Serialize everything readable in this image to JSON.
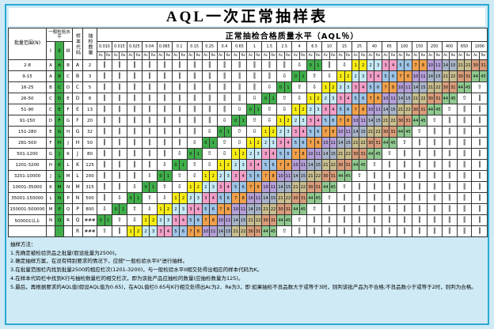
{
  "title": "AQL一次正常抽样表",
  "table": {
    "corner": {
      "lot_range": "批量范围(N)",
      "level_group": "一般检验水平",
      "levels": [
        "I",
        "II",
        "III"
      ],
      "sample_code": "样本代码",
      "sample_qty": "抽检数量"
    },
    "aql_header": "正常抽检合格质量水平（AQL％）",
    "ac": "Ac",
    "re": "Re",
    "aql_values": [
      "0.010",
      "0.015",
      "0.025",
      "0.04",
      "0.065",
      "0.1",
      "0.15",
      "0.25",
      "0.4",
      "0.65",
      "1",
      "1.5",
      "2.5",
      "4",
      "6.5",
      "10",
      "15",
      "25",
      "40",
      "65",
      "100",
      "150",
      "250",
      "400",
      "650",
      "1000"
    ],
    "rows": [
      {
        "range": "2-8",
        "levels": [
          "A",
          "A",
          "B"
        ],
        "code": "A",
        "qty": "2",
        "cells": [
          "D",
          "D",
          "D",
          "D",
          "D",
          "D",
          "D",
          "D",
          "D",
          "D",
          "D",
          "D",
          "D",
          "D",
          "0 1",
          "D",
          "D",
          "1 2",
          "2 3",
          "3 4",
          "5 6",
          "7 8",
          "10 11",
          "14 15",
          "21 22",
          "30 31"
        ]
      },
      {
        "range": "9-15",
        "levels": [
          "A",
          "B",
          "C"
        ],
        "code": "B",
        "qty": "3",
        "cells": [
          "D",
          "D",
          "D",
          "D",
          "D",
          "D",
          "D",
          "D",
          "D",
          "D",
          "D",
          "D",
          "D",
          "0 1",
          "U",
          "D",
          "1 2",
          "2 3",
          "3 4",
          "5 6",
          "7 8",
          "10 11",
          "14 15",
          "21 22",
          "30 31",
          "44 45"
        ]
      },
      {
        "range": "16-25",
        "levels": [
          "B",
          "C",
          "D"
        ],
        "code": "C",
        "qty": "5",
        "cells": [
          "D",
          "D",
          "D",
          "D",
          "D",
          "D",
          "D",
          "D",
          "D",
          "D",
          "D",
          "D",
          "0 1",
          "U",
          "D",
          "1 2",
          "2 3",
          "3 4",
          "5 6",
          "7 8",
          "10 11",
          "14 15",
          "21 22",
          "30 31",
          "44 45",
          "U"
        ]
      },
      {
        "range": "26-50",
        "levels": [
          "C",
          "D",
          "E"
        ],
        "code": "D",
        "qty": "8",
        "cells": [
          "D",
          "D",
          "D",
          "D",
          "D",
          "D",
          "D",
          "D",
          "D",
          "D",
          "D",
          "0 1",
          "U",
          "D",
          "1 2",
          "2 3",
          "3 4",
          "5 6",
          "7 8",
          "10 11",
          "14 15",
          "21 22",
          "30 31",
          "44 45",
          "U",
          "U"
        ]
      },
      {
        "range": "51-90",
        "levels": [
          "C",
          "E",
          "F"
        ],
        "code": "E",
        "qty": "13",
        "cells": [
          "D",
          "D",
          "D",
          "D",
          "D",
          "D",
          "D",
          "D",
          "D",
          "D",
          "0 1",
          "U",
          "D",
          "1 2",
          "2 3",
          "3 4",
          "5 6",
          "7 8",
          "10 11",
          "14 15",
          "21 22",
          "30 31",
          "44 45",
          "U",
          "U",
          "U"
        ]
      },
      {
        "range": "91-150",
        "levels": [
          "D",
          "F",
          "G"
        ],
        "code": "F",
        "qty": "20",
        "cells": [
          "D",
          "D",
          "D",
          "D",
          "D",
          "D",
          "D",
          "D",
          "D",
          "0 1",
          "U",
          "D",
          "1 2",
          "2 3",
          "3 4",
          "5 6",
          "7 8",
          "10 11",
          "14 15",
          "21 22",
          "30 31",
          "44 45",
          "U",
          "U",
          "U",
          "U"
        ]
      },
      {
        "range": "151-280",
        "levels": [
          "E",
          "G",
          "H"
        ],
        "code": "G",
        "qty": "32",
        "cells": [
          "D",
          "D",
          "D",
          "D",
          "D",
          "D",
          "D",
          "D",
          "0 1",
          "U",
          "D",
          "1 2",
          "2 3",
          "3 4",
          "5 6",
          "7 8",
          "10 11",
          "14 15",
          "21 22",
          "30 31",
          "44 45",
          "U",
          "U",
          "U",
          "U",
          "U"
        ]
      },
      {
        "range": "281-500",
        "levels": [
          "F",
          "H",
          "J"
        ],
        "code": "H",
        "qty": "50",
        "cells": [
          "D",
          "D",
          "D",
          "D",
          "D",
          "D",
          "D",
          "0 1",
          "U",
          "D",
          "1 2",
          "2 3",
          "3 4",
          "5 6",
          "7 8",
          "10 11",
          "14 15",
          "21 22",
          "30 31",
          "44 45",
          "U",
          "U",
          "U",
          "U",
          "U",
          "U"
        ]
      },
      {
        "range": "501-1200",
        "levels": [
          "G",
          "J",
          "K"
        ],
        "code": "J",
        "qty": "80",
        "cells": [
          "D",
          "D",
          "D",
          "D",
          "D",
          "D",
          "0 1",
          "U",
          "D",
          "1 2",
          "2 3",
          "3 4",
          "5 6",
          "7 8",
          "10 11",
          "14 15",
          "21 22",
          "30 31",
          "44 45",
          "U",
          "U",
          "U",
          "U",
          "U",
          "U",
          "U"
        ]
      },
      {
        "range": "1201-3200",
        "levels": [
          "H",
          "K",
          "L"
        ],
        "code": "K",
        "qty": "125",
        "cells": [
          "D",
          "D",
          "D",
          "D",
          "D",
          "0 1",
          "U",
          "D",
          "1 2",
          "2 3",
          "3 4",
          "5 6",
          "7 8",
          "10 11",
          "14 15",
          "21 22",
          "30 31",
          "44 45",
          "U",
          "U",
          "U",
          "U",
          "U",
          "U",
          "U",
          "U"
        ]
      },
      {
        "range": "3201-10000",
        "levels": [
          "J",
          "L",
          "M"
        ],
        "code": "L",
        "qty": "200",
        "cells": [
          "D",
          "D",
          "D",
          "D",
          "0 1",
          "U",
          "D",
          "1 2",
          "2 3",
          "3 4",
          "5 6",
          "7 8",
          "10 11",
          "14 15",
          "21 22",
          "30 31",
          "44 45",
          "U",
          "U",
          "U",
          "U",
          "U",
          "U",
          "U",
          "U",
          "U"
        ]
      },
      {
        "range": "10001-35000",
        "levels": [
          "K",
          "M",
          "N"
        ],
        "code": "M",
        "qty": "315",
        "cells": [
          "D",
          "D",
          "D",
          "0 1",
          "U",
          "D",
          "1 2",
          "2 3",
          "3 4",
          "5 6",
          "7 8",
          "10 11",
          "14 15",
          "21 22",
          "30 31",
          "44 45",
          "U",
          "U",
          "U",
          "U",
          "U",
          "U",
          "U",
          "U",
          "U",
          "U"
        ]
      },
      {
        "range": "35001-150000",
        "levels": [
          "L",
          "N",
          "P"
        ],
        "code": "N",
        "qty": "500",
        "cells": [
          "D",
          "D",
          "0 1",
          "U",
          "D",
          "1 2",
          "2 3",
          "3 4",
          "5 6",
          "7 8",
          "10 11",
          "14 15",
          "21 22",
          "30 31",
          "44 45",
          "U",
          "U",
          "U",
          "U",
          "U",
          "U",
          "U",
          "U",
          "U",
          "U",
          "U"
        ]
      },
      {
        "range": "150001-500000",
        "levels": [
          "M",
          "P",
          "Q"
        ],
        "code": "P",
        "qty": "800",
        "cells": [
          "D",
          "0 1",
          "U",
          "D",
          "1 2",
          "2 3",
          "3 4",
          "5 6",
          "7 8",
          "10 11",
          "14 15",
          "21 22",
          "30 31",
          "44 45",
          "U",
          "U",
          "U",
          "U",
          "U",
          "U",
          "U",
          "U",
          "U",
          "U",
          "U",
          "U"
        ]
      },
      {
        "range": "500001以上",
        "levels": [
          "N",
          "Q",
          "R"
        ],
        "code": "Q",
        "qty": "###",
        "cells": [
          "0 1",
          "U",
          "D",
          "1 2",
          "2 3",
          "3 4",
          "5 6",
          "7 8",
          "10 11",
          "14 15",
          "21 22",
          "30 31",
          "44 45",
          "U",
          "U",
          "U",
          "U",
          "U",
          "U",
          "U",
          "U",
          "U",
          "U",
          "U",
          "U",
          "U"
        ]
      },
      {
        "range": "",
        "levels": [
          "",
          "",
          ""
        ],
        "code": "R",
        "qty": "###",
        "cells": [
          "U",
          "U",
          "1 2",
          "2 3",
          "3 4",
          "5 6",
          "7 8",
          "10 11",
          "14 15",
          "21 22",
          "30 31",
          "44 45",
          "U",
          "U",
          "U",
          "U",
          "U",
          "U",
          "U",
          "U",
          "U",
          "U",
          "U",
          "U",
          "U",
          "U"
        ]
      }
    ]
  },
  "colors": {
    "level2_green": "#3fae49",
    "frame": "#2aa9d2",
    "background": "#cfeaf5",
    "bands": {
      "0 1": "#3fae49",
      "1 2": "#f7ec13",
      "2 3": "#c5e9f5",
      "3 4": "#f29ec7",
      "5 6": "#9dc3e6",
      "7 8": "#f0a04a",
      "10 11": "#b49fd8",
      "14 15": "#a8b4c8",
      "21 22": "#c8bd8e",
      "30 31": "#d99c7a",
      "44 45": "#8fc98f"
    }
  },
  "notes": {
    "title": "抽样方法：",
    "items": [
      "1.先确定被检验货品之批量(假设批量为2500)。",
      "2.确定抽样方案，在没有特别要求的情况下，应按\"一般检验水平II\"进行抽样。",
      "3.在批量范围栏内找到批量2500的相应栏次(1201-3200)，与一般检验水平II相交处得出相应的样本代码为K。",
      "4.在样本代码栏中找到K行与抽检数量栏的相交栏次，即为该批产品应抽检的数量(应抽检数量为125)。",
      "5.最后，再根据要求的AQL值(假设AQL值为0.65)，在AQL值栏0.65与K行相交处得出Ac为2、Re为3，即:如果抽检不良品数大于或等于3时，则判该批产品为不合格;不良品数小于或等于2时，则判为合格。"
    ]
  }
}
